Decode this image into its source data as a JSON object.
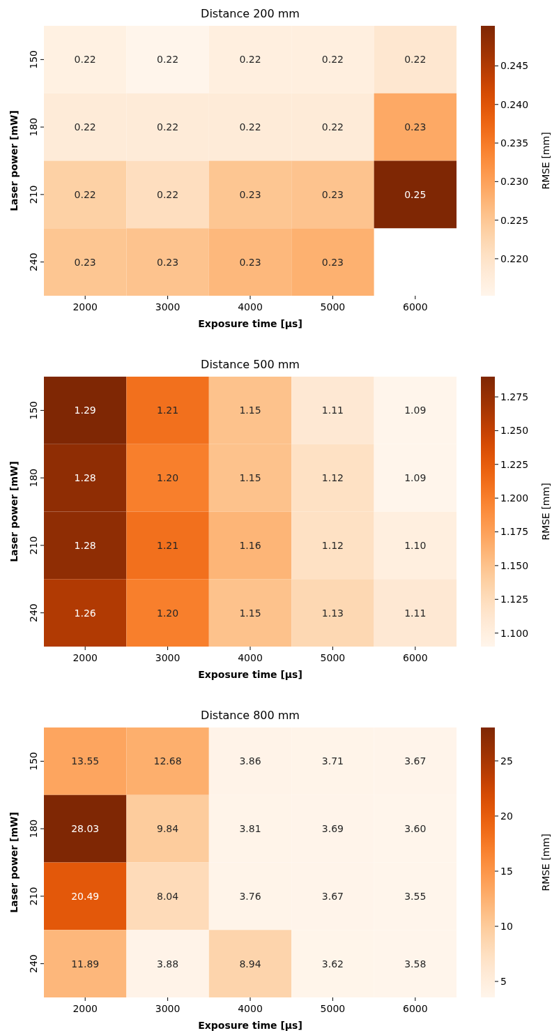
{
  "chart_data": [
    {
      "type": "heatmap",
      "title": "Distance 200 mm",
      "xlabel": "Exposure time [μs]",
      "ylabel": "Laser power [mW]",
      "clabel": "RMSE [mm]",
      "categories": [
        "2000",
        "3000",
        "4000",
        "5000",
        "6000"
      ],
      "y_categories": [
        "150",
        "180",
        "210",
        "240"
      ],
      "cells": [
        [
          0.2165,
          0.2152,
          0.217,
          0.217,
          0.219
        ],
        [
          0.218,
          0.218,
          0.218,
          0.218,
          0.229
        ],
        [
          0.2235,
          0.221,
          0.2252,
          0.2255,
          0.2502
        ],
        [
          0.2252,
          0.2255,
          0.227,
          0.228,
          null
        ]
      ],
      "cell_labels": [
        [
          "0.22",
          "0.22",
          "0.22",
          "0.22",
          "0.22"
        ],
        [
          "0.22",
          "0.22",
          "0.22",
          "0.22",
          "0.23"
        ],
        [
          "0.22",
          "0.22",
          "0.23",
          "0.23",
          "0.25"
        ],
        [
          "0.23",
          "0.23",
          "0.23",
          "0.23",
          null
        ]
      ],
      "clim": [
        0.2152,
        0.2502
      ],
      "cticks": [
        {
          "value": 0.22,
          "label": "0.220"
        },
        {
          "value": 0.225,
          "label": "0.225"
        },
        {
          "value": 0.23,
          "label": "0.230"
        },
        {
          "value": 0.235,
          "label": "0.235"
        },
        {
          "value": 0.24,
          "label": "0.240"
        },
        {
          "value": 0.245,
          "label": "0.245"
        }
      ]
    },
    {
      "type": "heatmap",
      "title": "Distance 500 mm",
      "xlabel": "Exposure time [μs]",
      "ylabel": "Laser power [mW]",
      "clabel": "RMSE [mm]",
      "categories": [
        "2000",
        "3000",
        "4000",
        "5000",
        "6000"
      ],
      "y_categories": [
        "150",
        "180",
        "210",
        "240"
      ],
      "cells": [
        [
          1.29,
          1.21,
          1.15,
          1.11,
          1.09
        ],
        [
          1.28,
          1.2,
          1.15,
          1.12,
          1.09
        ],
        [
          1.28,
          1.21,
          1.16,
          1.12,
          1.1
        ],
        [
          1.26,
          1.2,
          1.15,
          1.13,
          1.11
        ]
      ],
      "cell_labels": [
        [
          "1.29",
          "1.21",
          "1.15",
          "1.11",
          "1.09"
        ],
        [
          "1.28",
          "1.20",
          "1.15",
          "1.12",
          "1.09"
        ],
        [
          "1.28",
          "1.21",
          "1.16",
          "1.12",
          "1.10"
        ],
        [
          "1.26",
          "1.20",
          "1.15",
          "1.13",
          "1.11"
        ]
      ],
      "clim": [
        1.09,
        1.29
      ],
      "cticks": [
        {
          "value": 1.1,
          "label": "1.100"
        },
        {
          "value": 1.125,
          "label": "1.125"
        },
        {
          "value": 1.15,
          "label": "1.150"
        },
        {
          "value": 1.175,
          "label": "1.175"
        },
        {
          "value": 1.2,
          "label": "1.200"
        },
        {
          "value": 1.225,
          "label": "1.225"
        },
        {
          "value": 1.25,
          "label": "1.250"
        },
        {
          "value": 1.275,
          "label": "1.275"
        }
      ]
    },
    {
      "type": "heatmap",
      "title": "Distance 800 mm",
      "xlabel": "Exposure time [μs]",
      "ylabel": "Laser power [mW]",
      "clabel": "RMSE [mm]",
      "categories": [
        "2000",
        "3000",
        "4000",
        "5000",
        "6000"
      ],
      "y_categories": [
        "150",
        "180",
        "210",
        "240"
      ],
      "cells": [
        [
          13.55,
          12.68,
          3.86,
          3.71,
          3.67
        ],
        [
          28.03,
          9.84,
          3.81,
          3.69,
          3.6
        ],
        [
          20.49,
          8.04,
          3.76,
          3.67,
          3.55
        ],
        [
          11.89,
          3.88,
          8.94,
          3.62,
          3.58
        ]
      ],
      "cell_labels": [
        [
          "13.55",
          "12.68",
          "3.86",
          "3.71",
          "3.67"
        ],
        [
          "28.03",
          "9.84",
          "3.81",
          "3.69",
          "3.60"
        ],
        [
          "20.49",
          "8.04",
          "3.76",
          "3.67",
          "3.55"
        ],
        [
          "11.89",
          "3.88",
          "8.94",
          "3.62",
          "3.58"
        ]
      ],
      "clim": [
        3.55,
        28.03
      ],
      "cticks": [
        5,
        10,
        15,
        20,
        25
      ]
    }
  ]
}
